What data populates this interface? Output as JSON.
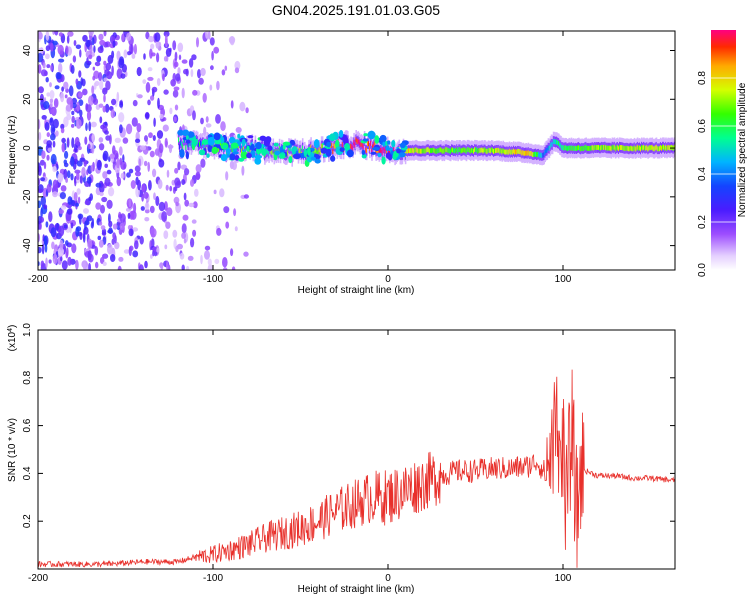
{
  "figure": {
    "title": "GN04.2025.191.01.03.G05"
  },
  "chart_data": [
    {
      "type": "heatmap",
      "title": "GN04.2025.191.01.03.G05",
      "xlabel": "Height of straight line (km)",
      "ylabel": "Frequency (Hz)",
      "xlim": [
        -200,
        164
      ],
      "ylim": [
        -50,
        48
      ],
      "xticks": [
        -200,
        -100,
        0,
        100
      ],
      "yticks": [
        -40,
        -20,
        0,
        20,
        40
      ],
      "colorbar": {
        "label": "Normalized spectral amplitude",
        "range": [
          0.0,
          1.0
        ],
        "ticks": [
          0.0,
          0.2,
          0.4,
          0.6,
          0.8
        ],
        "colormap": "rainbow (violet→blue→cyan→green→yellow→red)"
      },
      "ridge": {
        "description": "dominant frequency ridge near 0 Hz",
        "x": [
          -120,
          -100,
          -80,
          -60,
          -40,
          -20,
          0,
          20,
          40,
          60,
          80,
          88,
          95,
          100,
          120,
          164
        ],
        "frequency_hz": [
          2,
          1,
          0,
          -2,
          -1,
          2,
          -1,
          -1,
          -1,
          -1,
          -2,
          -3,
          3,
          0,
          0,
          0
        ],
        "amplitude": [
          0.35,
          0.45,
          0.5,
          0.55,
          0.6,
          0.95,
          0.9,
          0.7,
          0.65,
          0.7,
          0.85,
          0.4,
          0.5,
          0.6,
          0.7,
          0.75
        ]
      },
      "noise_region": {
        "x_range": [
          -200,
          -80
        ],
        "frequency_range_hz": [
          -50,
          48
        ]
      }
    },
    {
      "type": "line",
      "xlabel": "Height of straight line (km)",
      "ylabel": "SNR (10 * v/v)",
      "y_multiplier": "(x10",
      "y_multiplier_exp": "4",
      "y_multiplier_close": ")",
      "xlim": [
        -200,
        164
      ],
      "ylim": [
        0,
        1.0
      ],
      "xticks": [
        -200,
        -100,
        0,
        100
      ],
      "yticks": [
        0.2,
        0.4,
        0.6,
        0.8,
        1.0
      ],
      "color": "#e8302b",
      "series": [
        {
          "x": [
            -200,
            -180,
            -160,
            -140,
            -120,
            -110,
            -100,
            -90,
            -80,
            -70,
            -60,
            -50,
            -40,
            -30,
            -20,
            -10,
            0,
            10,
            20,
            30,
            40,
            50,
            60,
            70,
            80,
            85,
            90,
            95,
            98,
            100,
            102,
            105,
            108,
            110,
            120,
            130,
            140,
            150,
            164
          ],
          "values": [
            0.02,
            0.02,
            0.02,
            0.03,
            0.03,
            0.05,
            0.06,
            0.08,
            0.1,
            0.13,
            0.15,
            0.17,
            0.2,
            0.24,
            0.27,
            0.3,
            0.3,
            0.33,
            0.36,
            0.39,
            0.41,
            0.41,
            0.42,
            0.42,
            0.43,
            0.45,
            0.4,
            0.55,
            0.35,
            0.55,
            0.25,
            0.6,
            0.2,
            0.42,
            0.39,
            0.39,
            0.38,
            0.38,
            0.37
          ]
        }
      ]
    }
  ]
}
